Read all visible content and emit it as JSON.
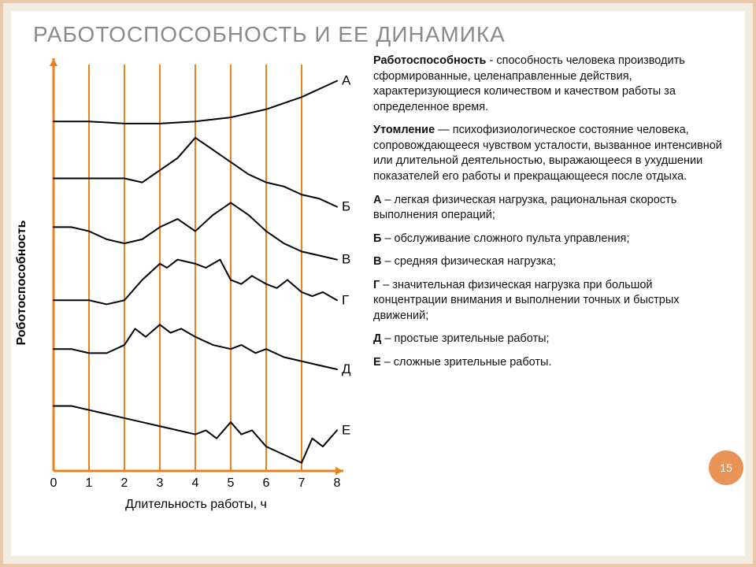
{
  "title": "РАБОТОСПОСОБНОСТЬ И ЕЕ ДИНАМИКА",
  "slide_number": "15",
  "chart": {
    "type": "line",
    "xlabel": "Длительность работы, ч",
    "ylabel": "Роботоспособность",
    "x_ticks": [
      0,
      1,
      2,
      3,
      4,
      5,
      6,
      7,
      8
    ],
    "xlim": [
      0,
      8
    ],
    "ylim": [
      0,
      100
    ],
    "background_color": "#ffffff",
    "axis_color": "#e8821e",
    "grid_color": "#e8821e",
    "line_color": "#000000",
    "line_width": 2,
    "arrow_size": 10,
    "series": [
      {
        "label": "А",
        "points": [
          [
            0,
            86
          ],
          [
            1,
            86
          ],
          [
            2,
            85.5
          ],
          [
            3,
            85.5
          ],
          [
            4,
            86
          ],
          [
            5,
            87
          ],
          [
            6,
            89
          ],
          [
            7,
            92
          ],
          [
            8,
            96
          ]
        ]
      },
      {
        "label": "Б",
        "points": [
          [
            0,
            72
          ],
          [
            1,
            72
          ],
          [
            2,
            72
          ],
          [
            2.5,
            71
          ],
          [
            3,
            74
          ],
          [
            3.5,
            77
          ],
          [
            4,
            82
          ],
          [
            4.5,
            79
          ],
          [
            5,
            76
          ],
          [
            5.5,
            73
          ],
          [
            6,
            71
          ],
          [
            6.5,
            70
          ],
          [
            7,
            68
          ],
          [
            7.5,
            67
          ],
          [
            8,
            65
          ]
        ]
      },
      {
        "label": "В",
        "points": [
          [
            0,
            60
          ],
          [
            0.5,
            60
          ],
          [
            1,
            59
          ],
          [
            1.5,
            57
          ],
          [
            2,
            56
          ],
          [
            2.5,
            57
          ],
          [
            3,
            60
          ],
          [
            3.5,
            62
          ],
          [
            4,
            59
          ],
          [
            4.5,
            63
          ],
          [
            5,
            66
          ],
          [
            5.5,
            63
          ],
          [
            6,
            59
          ],
          [
            6.5,
            56
          ],
          [
            7,
            54
          ],
          [
            7.5,
            53
          ],
          [
            8,
            52
          ]
        ]
      },
      {
        "label": "Г",
        "points": [
          [
            0,
            42
          ],
          [
            0.5,
            42
          ],
          [
            1,
            42
          ],
          [
            1.5,
            41
          ],
          [
            2,
            42
          ],
          [
            2.5,
            47
          ],
          [
            3,
            51
          ],
          [
            3.2,
            50
          ],
          [
            3.5,
            52
          ],
          [
            4,
            51
          ],
          [
            4.3,
            50
          ],
          [
            4.7,
            52
          ],
          [
            5,
            47
          ],
          [
            5.3,
            46
          ],
          [
            5.6,
            48
          ],
          [
            6,
            46
          ],
          [
            6.3,
            45
          ],
          [
            6.6,
            47
          ],
          [
            7,
            44
          ],
          [
            7.3,
            43
          ],
          [
            7.6,
            44
          ],
          [
            8,
            42
          ]
        ]
      },
      {
        "label": "Д",
        "points": [
          [
            0,
            30
          ],
          [
            0.5,
            30
          ],
          [
            1,
            29
          ],
          [
            1.5,
            29
          ],
          [
            2,
            31
          ],
          [
            2.3,
            35
          ],
          [
            2.6,
            33
          ],
          [
            3,
            36
          ],
          [
            3.3,
            34
          ],
          [
            3.6,
            35
          ],
          [
            4,
            33
          ],
          [
            4.5,
            31
          ],
          [
            5,
            30
          ],
          [
            5.3,
            31
          ],
          [
            5.7,
            29
          ],
          [
            6,
            30
          ],
          [
            6.5,
            28
          ],
          [
            7,
            27
          ],
          [
            7.5,
            26
          ],
          [
            8,
            25
          ]
        ]
      },
      {
        "label": "Е",
        "points": [
          [
            0,
            16
          ],
          [
            0.5,
            16
          ],
          [
            1,
            15
          ],
          [
            1.5,
            14
          ],
          [
            2,
            13
          ],
          [
            2.5,
            12
          ],
          [
            3,
            11
          ],
          [
            3.5,
            10
          ],
          [
            4,
            9
          ],
          [
            4.3,
            10
          ],
          [
            4.6,
            8
          ],
          [
            5,
            12
          ],
          [
            5.3,
            9
          ],
          [
            5.6,
            10
          ],
          [
            6,
            6
          ],
          [
            6.5,
            4
          ],
          [
            7,
            2
          ],
          [
            7.3,
            8
          ],
          [
            7.6,
            6
          ],
          [
            8,
            10
          ]
        ]
      }
    ]
  },
  "definitions": [
    {
      "term": "Работоспособность",
      "sep": " - ",
      "text": "способность человека производить сформированные, целенаправленные действия, характеризующиеся количеством и качеством работы за определенное время."
    },
    {
      "term": "Утомление",
      "sep": " — ",
      "text": "психофизиологическое состояние человека, сопровождающееся чувством усталости, вызванное интенсивной или длительной деятельностью, выражающееся в ухудшении показателей его работы и прекращающееся после отдыха."
    }
  ],
  "legend": [
    {
      "key": "А",
      "text": "легкая физическая нагрузка, рациональная скорость выполнения операций;"
    },
    {
      "key": "Б",
      "text": "обслуживание сложного пульта управления;"
    },
    {
      "key": "В",
      "text": "средняя физическая нагрузка;"
    },
    {
      "key": "Г",
      "text": "значительная физическая нагрузка при большой концентрации внимания и выполнении точных и быстрых движений;"
    },
    {
      "key": "Д",
      "text": "простые зрительные работы;"
    },
    {
      "key": "Е",
      "text": "сложные зрительные работы."
    }
  ]
}
